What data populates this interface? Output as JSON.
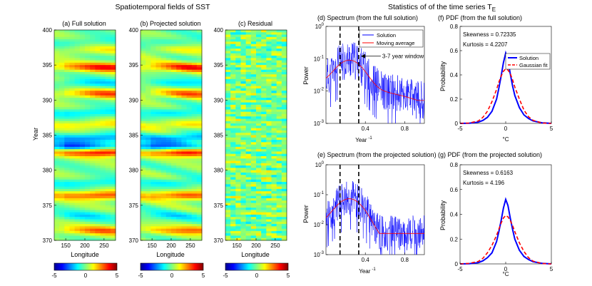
{
  "figure": {
    "left_title": "Spatiotemporal fields of SST",
    "right_title_main": "Statistics of of the time series T",
    "right_title_sub": "E"
  },
  "colors": {
    "solution_line": "#0000ff",
    "moving_average": "#ff0000",
    "gaussian_fit": "#ff0000",
    "window_lines": "#000000"
  },
  "chart_data": [
    {
      "id": "a",
      "type": "heatmap",
      "title": "(a) Full solution",
      "xlabel": "Longitude",
      "ylabel": "Year",
      "xlim": [
        120,
        280
      ],
      "ylim": [
        370,
        400
      ],
      "xticks": [
        150,
        200,
        250
      ],
      "yticks": [
        370,
        375,
        380,
        385,
        390,
        395,
        400
      ],
      "colorbar": {
        "min": -5,
        "max": 5,
        "ticks": [
          -5,
          0,
          5
        ],
        "colormap": "jet"
      },
      "bands": [
        {
          "year": 371.4,
          "value": 2.6,
          "lon": 255
        },
        {
          "year": 373.5,
          "value": -1.2,
          "lon": 200
        },
        {
          "year": 376.4,
          "value": 3.4,
          "lon": 245
        },
        {
          "year": 378.2,
          "value": -1.6,
          "lon": 220
        },
        {
          "year": 382.6,
          "value": 4.6,
          "lon": 255
        },
        {
          "year": 383.3,
          "value": -3.6,
          "lon": 150
        },
        {
          "year": 384.6,
          "value": -2.6,
          "lon": 230
        },
        {
          "year": 386.5,
          "value": 1.8,
          "lon": 240
        },
        {
          "year": 388.2,
          "value": -1.8,
          "lon": 220
        },
        {
          "year": 390.9,
          "value": 2.8,
          "lon": 255
        },
        {
          "year": 392.4,
          "value": -1.5,
          "lon": 210
        },
        {
          "year": 394.7,
          "value": 3.6,
          "lon": 265
        },
        {
          "year": 397.1,
          "value": 1.2,
          "lon": 230
        },
        {
          "year": 398.3,
          "value": -1.0,
          "lon": 200
        }
      ]
    },
    {
      "id": "b",
      "type": "heatmap",
      "title": "(b) Projected solution",
      "xlabel": "Longitude",
      "ylabel": "",
      "xlim": [
        120,
        280
      ],
      "ylim": [
        370,
        400
      ],
      "xticks": [
        150,
        200,
        250
      ],
      "yticks": [
        370,
        375,
        380,
        385,
        390,
        395,
        400
      ],
      "colorbar": {
        "min": -5,
        "max": 5,
        "ticks": [
          -5,
          0,
          5
        ],
        "colormap": "jet"
      }
    },
    {
      "id": "c",
      "type": "heatmap",
      "title": "(c) Residual",
      "xlabel": "Longitude",
      "ylabel": "",
      "xlim": [
        120,
        280
      ],
      "ylim": [
        370,
        400
      ],
      "xticks": [
        150,
        200,
        250
      ],
      "yticks": [
        370,
        375,
        380,
        385,
        390,
        395,
        400
      ],
      "colorbar": {
        "min": -5,
        "max": 5,
        "ticks": [
          -5,
          0,
          5
        ],
        "colormap": "jet"
      }
    },
    {
      "id": "d",
      "type": "line",
      "title": "(d) Spectrum (from the full solution)",
      "xlabel": "Year",
      "xlabel_sup": "-1",
      "ylabel": "Power",
      "yscale": "log",
      "xlim": [
        0,
        1
      ],
      "ylim": [
        0.001,
        1
      ],
      "xticks": [
        0.4,
        0.8
      ],
      "yticks": [
        0.001,
        0.01,
        0.1,
        1
      ],
      "ytick_labels": [
        {
          "base": "10",
          "exp": "-3"
        },
        {
          "base": "10",
          "exp": "-2"
        },
        {
          "base": "10",
          "exp": "-1"
        },
        {
          "base": "10",
          "exp": "0"
        }
      ],
      "legend": {
        "position": "top-right",
        "entries": [
          "Solution",
          "Moving average"
        ]
      },
      "window_lines": [
        0.143,
        0.333
      ],
      "annotation": "3-7 year window",
      "annotation_target": [
        0.34,
        0.12
      ],
      "spectrum": {
        "peak_freq": 0.24,
        "peak_power": 0.11,
        "hf_power": 0.02,
        "seed": 11
      }
    },
    {
      "id": "e",
      "type": "line",
      "title": "(e) Spectrum (from the projected solution)",
      "xlabel": "Year",
      "xlabel_sup": "-1",
      "ylabel": "Power",
      "yscale": "log",
      "xlim": [
        0,
        1
      ],
      "ylim": [
        0.001,
        1
      ],
      "xticks": [
        0.4,
        0.8
      ],
      "yticks": [
        0.001,
        0.01,
        0.1,
        1
      ],
      "ytick_labels": [
        {
          "base": "10",
          "exp": "-3"
        },
        {
          "base": "10",
          "exp": "-2"
        },
        {
          "base": "10",
          "exp": "-1"
        },
        {
          "base": "10",
          "exp": "0"
        }
      ],
      "window_lines": [
        0.143,
        0.333
      ],
      "spectrum": {
        "peak_freq": 0.24,
        "peak_power": 0.09,
        "hf_power": 0.012,
        "seed": 29
      }
    },
    {
      "id": "f",
      "type": "line",
      "title": "(f) PDF (from the full solution)",
      "xlabel": "°C",
      "ylabel": "Probability",
      "xlim": [
        -5,
        5
      ],
      "ylim": [
        0,
        0.8
      ],
      "xticks": [
        -5,
        0,
        5
      ],
      "yticks": [
        0,
        0.2,
        0.4,
        0.6,
        0.8
      ],
      "stats": [
        "Skewness = 0.72335",
        "Kurtosis = 4.2207"
      ],
      "legend": {
        "position": "right",
        "entries": [
          "Solution",
          "Gaussian fit"
        ]
      },
      "x": [
        -5,
        -4,
        -3,
        -2.5,
        -2,
        -1.5,
        -1,
        -0.75,
        -0.5,
        -0.25,
        0,
        0.25,
        0.5,
        0.75,
        1,
        1.5,
        2,
        2.5,
        3,
        4,
        5
      ],
      "solution": [
        0,
        0.002,
        0.01,
        0.025,
        0.05,
        0.1,
        0.2,
        0.29,
        0.39,
        0.5,
        0.58,
        0.52,
        0.41,
        0.31,
        0.23,
        0.13,
        0.07,
        0.04,
        0.02,
        0.005,
        0
      ],
      "gaussian": [
        0,
        0.003,
        0.02,
        0.05,
        0.1,
        0.18,
        0.28,
        0.34,
        0.39,
        0.43,
        0.45,
        0.44,
        0.41,
        0.36,
        0.3,
        0.2,
        0.11,
        0.055,
        0.025,
        0.003,
        0
      ]
    },
    {
      "id": "g",
      "type": "line",
      "title": "(g) PDF (from the projected solution)",
      "xlabel": "°C",
      "ylabel": "Probability",
      "xlim": [
        -5,
        5
      ],
      "ylim": [
        0,
        0.8
      ],
      "xticks": [
        -5,
        0,
        5
      ],
      "yticks": [
        0,
        0.2,
        0.4,
        0.6,
        0.8
      ],
      "stats": [
        "Skewness = 0.6163",
        "Kurtosis = 4.196"
      ],
      "x": [
        -5,
        -4,
        -3,
        -2.5,
        -2,
        -1.5,
        -1,
        -0.75,
        -0.5,
        -0.25,
        0,
        0.25,
        0.5,
        0.75,
        1,
        1.5,
        2,
        2.5,
        3,
        4,
        5
      ],
      "solution": [
        0,
        0.002,
        0.01,
        0.025,
        0.05,
        0.09,
        0.18,
        0.26,
        0.35,
        0.45,
        0.52,
        0.47,
        0.37,
        0.28,
        0.2,
        0.11,
        0.06,
        0.035,
        0.018,
        0.004,
        0
      ],
      "gaussian": [
        0,
        0.004,
        0.02,
        0.045,
        0.09,
        0.15,
        0.23,
        0.28,
        0.33,
        0.37,
        0.39,
        0.38,
        0.35,
        0.31,
        0.26,
        0.17,
        0.1,
        0.05,
        0.022,
        0.003,
        0
      ]
    }
  ]
}
